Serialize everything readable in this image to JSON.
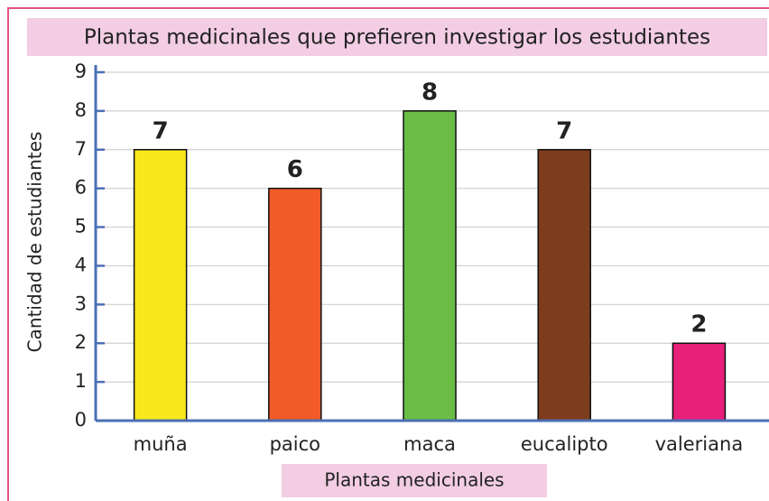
{
  "chart_data": {
    "type": "bar",
    "title": "Plantas medicinales que prefieren investigar los estudiantes",
    "x_label": "Plantas medicinales",
    "y_label": "Cantidad de estudiantes",
    "categories": [
      "muña",
      "paico",
      "maca",
      "eucalipto",
      "valeriana"
    ],
    "values": [
      7,
      6,
      8,
      7,
      2
    ],
    "colors": [
      "#f8e71c",
      "#f15a29",
      "#6abd45",
      "#7d3c1b",
      "#e8207a"
    ],
    "ylim": [
      0,
      9
    ],
    "yticks": [
      0,
      1,
      2,
      3,
      4,
      5,
      6,
      7,
      8,
      9
    ],
    "grid": true
  }
}
